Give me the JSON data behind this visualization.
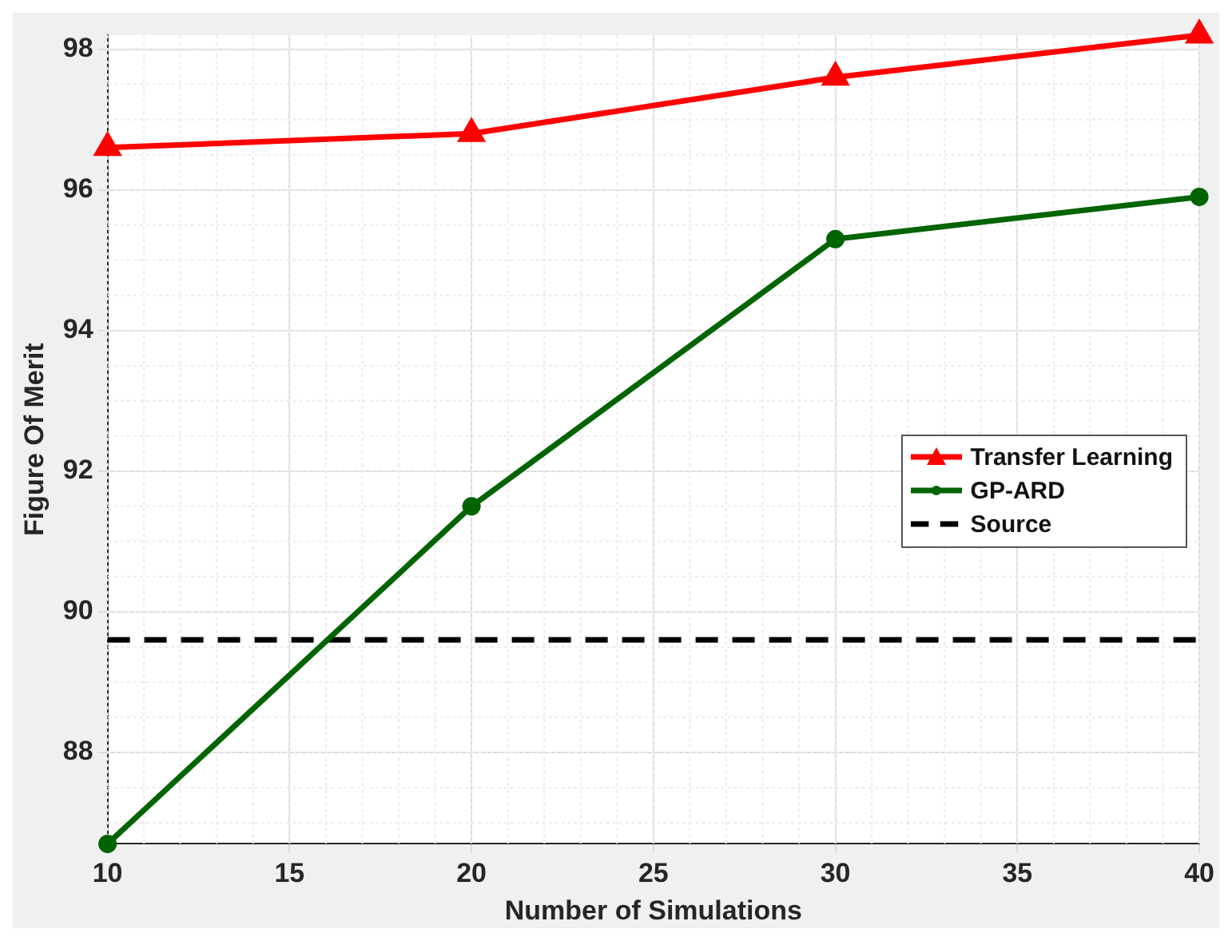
{
  "chart_data": {
    "type": "line",
    "xlabel": "Number of Simulations",
    "ylabel": "Figure Of Merit",
    "x": [
      10,
      20,
      30,
      40
    ],
    "series": [
      {
        "name": "Transfer Learning",
        "color": "#ff0000",
        "marker": "triangle",
        "line_style": "solid",
        "values": [
          96.6,
          96.8,
          97.6,
          98.2
        ]
      },
      {
        "name": "GP-ARD",
        "color": "#006400",
        "marker": "circle",
        "line_style": "solid",
        "values": [
          86.7,
          91.5,
          95.3,
          95.9
        ]
      },
      {
        "name": "Source",
        "color": "#000000",
        "marker": "none",
        "line_style": "dashed",
        "values": [
          89.6,
          89.6,
          89.6,
          89.6
        ]
      }
    ],
    "xlim": [
      10,
      40
    ],
    "xticks": [
      10,
      15,
      20,
      25,
      30,
      35,
      40
    ],
    "ylim": [
      86.7,
      98.2
    ],
    "yticks": [
      88,
      90,
      92,
      94,
      96,
      98
    ],
    "grid": true,
    "legend": "right"
  }
}
